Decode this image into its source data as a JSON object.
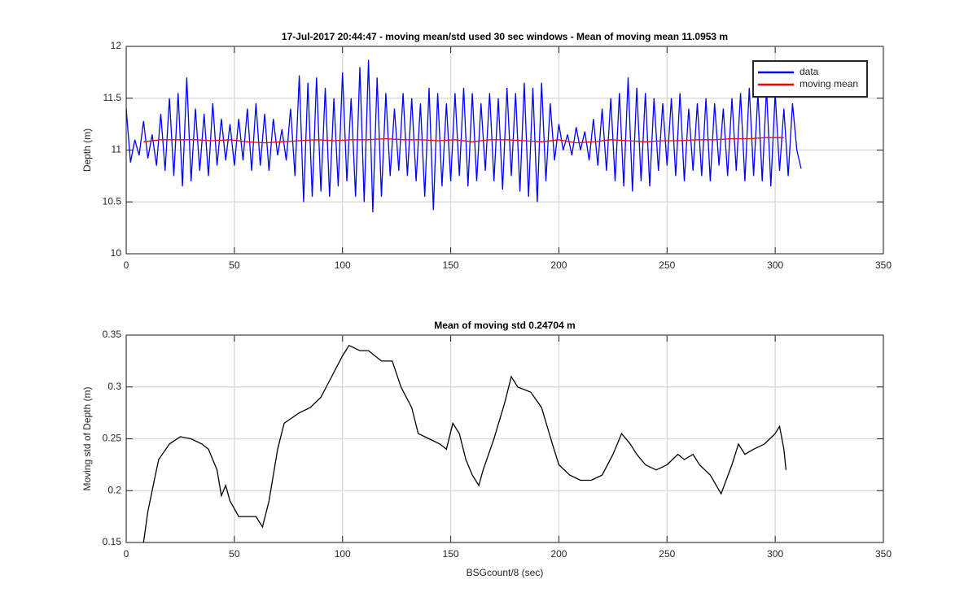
{
  "chart_data": [
    {
      "type": "line",
      "title": "17-Jul-2017 20:44:47 - moving mean/std used 30 sec windows - Mean of moving mean 11.0953 m",
      "ylabel": "Depth (m)",
      "xlim": [
        0,
        350
      ],
      "xticks": [
        0,
        50,
        100,
        150,
        200,
        250,
        300,
        350
      ],
      "ylim": [
        10,
        12
      ],
      "yticks": [
        10,
        10.5,
        11,
        11.5,
        12
      ],
      "grid": true,
      "legend": "northeast",
      "series": [
        {
          "name": "data",
          "color": "#0000ff",
          "x": [
            0,
            2,
            4,
            6,
            8,
            10,
            12,
            14,
            16,
            18,
            20,
            22,
            24,
            26,
            28,
            30,
            32,
            34,
            36,
            38,
            40,
            42,
            44,
            46,
            48,
            50,
            52,
            54,
            56,
            58,
            60,
            62,
            64,
            66,
            68,
            70,
            72,
            74,
            76,
            78,
            80,
            82,
            84,
            86,
            88,
            90,
            92,
            94,
            96,
            98,
            100,
            102,
            104,
            106,
            108,
            110,
            112,
            114,
            116,
            118,
            120,
            122,
            124,
            126,
            128,
            130,
            132,
            134,
            136,
            138,
            140,
            142,
            144,
            146,
            148,
            150,
            152,
            154,
            156,
            158,
            160,
            162,
            164,
            166,
            168,
            170,
            172,
            174,
            176,
            178,
            180,
            182,
            184,
            186,
            188,
            190,
            192,
            194,
            196,
            198,
            200,
            202,
            204,
            206,
            208,
            210,
            212,
            214,
            216,
            218,
            220,
            222,
            224,
            226,
            228,
            230,
            232,
            234,
            236,
            238,
            240,
            242,
            244,
            246,
            248,
            250,
            252,
            254,
            256,
            258,
            260,
            262,
            264,
            266,
            268,
            270,
            272,
            274,
            276,
            278,
            280,
            282,
            284,
            286,
            288,
            290,
            292,
            294,
            296,
            298,
            300,
            302,
            304,
            306,
            308,
            310,
            312
          ],
          "values": [
            11.4,
            10.88,
            11.1,
            10.95,
            11.28,
            10.92,
            11.15,
            10.85,
            11.35,
            10.8,
            11.5,
            10.75,
            11.55,
            10.65,
            11.7,
            10.7,
            11.4,
            10.8,
            11.35,
            10.75,
            11.45,
            10.85,
            11.3,
            10.9,
            11.25,
            10.85,
            11.3,
            10.9,
            11.4,
            10.8,
            11.45,
            10.85,
            11.35,
            10.8,
            11.3,
            10.95,
            11.2,
            10.9,
            11.4,
            10.75,
            11.72,
            10.5,
            11.65,
            10.55,
            11.7,
            10.6,
            11.6,
            10.55,
            11.5,
            10.65,
            11.75,
            10.7,
            11.5,
            10.55,
            11.8,
            10.5,
            11.87,
            10.4,
            11.7,
            10.55,
            11.55,
            10.75,
            11.4,
            10.8,
            11.55,
            10.75,
            11.5,
            10.7,
            11.45,
            10.55,
            11.6,
            10.42,
            11.55,
            10.65,
            11.45,
            10.7,
            11.55,
            10.75,
            11.6,
            10.65,
            11.55,
            10.7,
            11.45,
            10.8,
            11.55,
            10.7,
            11.5,
            10.62,
            11.6,
            10.75,
            11.55,
            10.6,
            11.65,
            10.55,
            11.6,
            10.5,
            11.65,
            10.7,
            11.45,
            10.9,
            11.25,
            11.0,
            11.15,
            10.95,
            11.22,
            11.0,
            11.18,
            10.9,
            11.3,
            10.85,
            11.4,
            10.8,
            11.5,
            10.7,
            11.55,
            10.65,
            11.7,
            10.6,
            11.6,
            10.7,
            11.55,
            10.65,
            11.5,
            10.8,
            11.45,
            10.85,
            11.5,
            10.75,
            11.55,
            10.7,
            11.4,
            10.8,
            11.45,
            10.75,
            11.5,
            10.7,
            11.45,
            10.85,
            11.4,
            10.75,
            11.5,
            10.8,
            11.55,
            10.7,
            11.6,
            10.75,
            11.55,
            10.7,
            11.6,
            10.65,
            11.55,
            10.8,
            11.4,
            10.75,
            11.45,
            11.0,
            10.82
          ]
        },
        {
          "name": "moving mean",
          "color": "#ff0000",
          "x": [
            8,
            16,
            24,
            32,
            40,
            48,
            56,
            64,
            72,
            80,
            88,
            96,
            104,
            112,
            120,
            128,
            136,
            144,
            152,
            160,
            168,
            176,
            184,
            192,
            200,
            208,
            216,
            224,
            232,
            240,
            248,
            256,
            264,
            272,
            280,
            288,
            296,
            304
          ],
          "values": [
            11.08,
            11.1,
            11.1,
            11.1,
            11.09,
            11.1,
            11.08,
            11.07,
            11.08,
            11.09,
            11.1,
            11.09,
            11.1,
            11.1,
            11.11,
            11.1,
            11.1,
            11.09,
            11.1,
            11.08,
            11.1,
            11.1,
            11.09,
            11.08,
            11.1,
            11.07,
            11.08,
            11.1,
            11.09,
            11.08,
            11.09,
            11.09,
            11.1,
            11.1,
            11.11,
            11.11,
            11.12,
            11.12
          ]
        }
      ]
    },
    {
      "type": "line",
      "title": "Mean of moving std 0.24704 m",
      "xlabel": "BSGcount/8 (sec)",
      "ylabel": "Moving std of Depth (m)",
      "xlim": [
        0,
        350
      ],
      "xticks": [
        0,
        50,
        100,
        150,
        200,
        250,
        300,
        350
      ],
      "ylim": [
        0.15,
        0.35
      ],
      "yticks": [
        0.15,
        0.2,
        0.25,
        0.3,
        0.35
      ],
      "grid": true,
      "series": [
        {
          "color": "#000000",
          "x": [
            8,
            10,
            13,
            15,
            20,
            25,
            30,
            35,
            38,
            42,
            44,
            46,
            48,
            52,
            55,
            60,
            63,
            66,
            70,
            73,
            80,
            85,
            90,
            95,
            100,
            103,
            108,
            112,
            118,
            123,
            127,
            132,
            135,
            140,
            145,
            148,
            151,
            154,
            157,
            160,
            163,
            165,
            170,
            175,
            178,
            181,
            187,
            192,
            197,
            200,
            205,
            210,
            215,
            220,
            225,
            229,
            233,
            236,
            240,
            245,
            250,
            255,
            258,
            262,
            265,
            270,
            275,
            280,
            283,
            286,
            290,
            295,
            300,
            302,
            304,
            305
          ],
          "values": [
            0.15,
            0.18,
            0.21,
            0.23,
            0.245,
            0.252,
            0.25,
            0.245,
            0.24,
            0.22,
            0.195,
            0.205,
            0.19,
            0.175,
            0.175,
            0.175,
            0.165,
            0.19,
            0.24,
            0.265,
            0.275,
            0.28,
            0.29,
            0.31,
            0.33,
            0.34,
            0.335,
            0.335,
            0.325,
            0.325,
            0.3,
            0.28,
            0.255,
            0.25,
            0.245,
            0.24,
            0.265,
            0.255,
            0.23,
            0.215,
            0.205,
            0.22,
            0.25,
            0.285,
            0.31,
            0.3,
            0.295,
            0.28,
            0.245,
            0.225,
            0.215,
            0.21,
            0.21,
            0.215,
            0.235,
            0.255,
            0.245,
            0.235,
            0.225,
            0.22,
            0.225,
            0.235,
            0.23,
            0.235,
            0.225,
            0.215,
            0.197,
            0.225,
            0.245,
            0.235,
            0.24,
            0.245,
            0.255,
            0.262,
            0.24,
            0.22
          ]
        }
      ]
    }
  ]
}
